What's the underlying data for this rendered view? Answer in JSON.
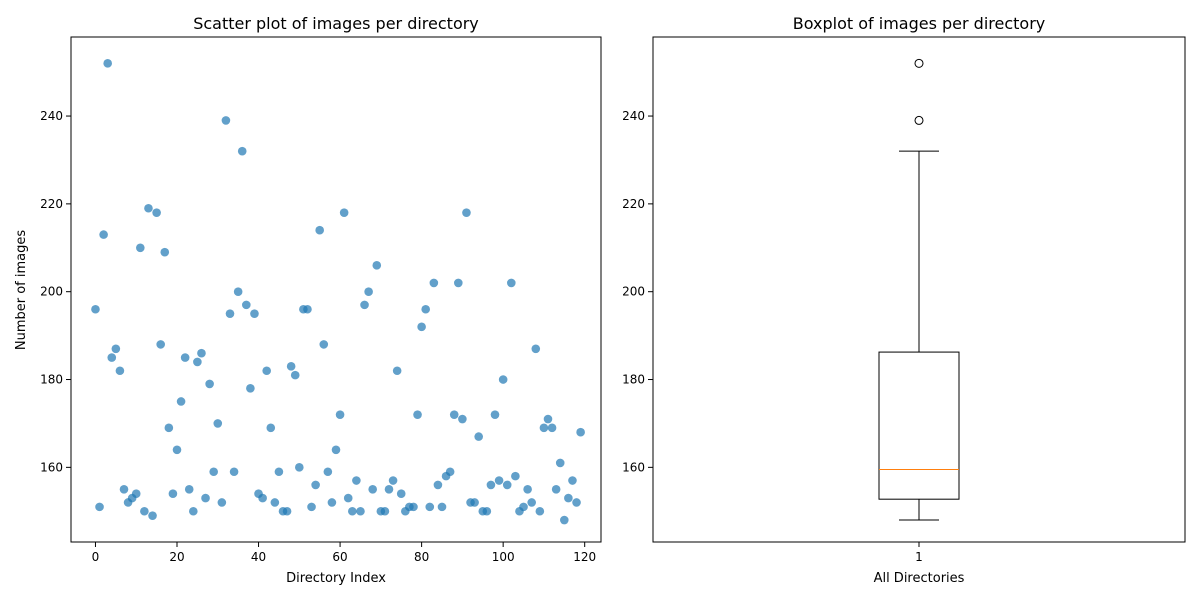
{
  "chart_data": [
    {
      "type": "scatter",
      "title": "Scatter plot of images per directory",
      "xlabel": "Directory Index",
      "ylabel": "Number of images",
      "xlim": [
        -6,
        124
      ],
      "ylim": [
        143,
        258
      ],
      "xticks": [
        0,
        20,
        40,
        60,
        80,
        100,
        120
      ],
      "yticks": [
        160,
        180,
        200,
        220,
        240
      ],
      "grid": false,
      "marker_color": "#1f77b4",
      "marker_alpha": 0.7,
      "x": [
        0,
        1,
        2,
        3,
        4,
        5,
        6,
        7,
        8,
        9,
        10,
        11,
        12,
        13,
        14,
        15,
        16,
        17,
        18,
        19,
        20,
        21,
        22,
        23,
        24,
        25,
        26,
        27,
        28,
        29,
        30,
        31,
        32,
        33,
        34,
        35,
        36,
        37,
        38,
        39,
        40,
        41,
        42,
        43,
        44,
        45,
        46,
        47,
        48,
        49,
        50,
        51,
        52,
        53,
        54,
        55,
        56,
        57,
        58,
        59,
        60,
        61,
        62,
        63,
        64,
        65,
        66,
        67,
        68,
        69,
        70,
        71,
        72,
        73,
        74,
        75,
        76,
        77,
        78,
        79,
        80,
        81,
        82,
        83,
        84,
        85,
        86,
        87,
        88,
        89,
        90,
        91,
        92,
        93,
        94,
        95,
        96,
        97,
        98,
        99,
        100,
        101,
        102,
        103,
        104,
        105,
        106,
        107,
        108,
        109,
        110,
        111,
        112,
        113,
        114,
        115,
        116,
        117,
        118,
        119
      ],
      "y": [
        196,
        151,
        213,
        252,
        185,
        187,
        182,
        155,
        152,
        153,
        154,
        210,
        150,
        219,
        149,
        218,
        188,
        209,
        169,
        154,
        164,
        175,
        185,
        155,
        150,
        184,
        186,
        153,
        179,
        159,
        170,
        152,
        239,
        195,
        159,
        200,
        232,
        197,
        178,
        195,
        154,
        153,
        182,
        169,
        152,
        159,
        150,
        150,
        183,
        181,
        160,
        196,
        196,
        151,
        156,
        214,
        188,
        159,
        152,
        164,
        172,
        218,
        153,
        150,
        157,
        150,
        197,
        200,
        155,
        206,
        150,
        150,
        155,
        157,
        182,
        154,
        150,
        151,
        151,
        172,
        192,
        196,
        151,
        202,
        156,
        151,
        158,
        159,
        172,
        202,
        171,
        218,
        152,
        152,
        167,
        150,
        150,
        156,
        172,
        157,
        180,
        156,
        202,
        158,
        150,
        151,
        155,
        152,
        187,
        150,
        169,
        171,
        169,
        155,
        161,
        148,
        153,
        157,
        152,
        168
      ]
    },
    {
      "type": "box",
      "title": "Boxplot of images per directory",
      "xlabel": "All Directories",
      "ylabel": "",
      "ylim": [
        143,
        258
      ],
      "xticks": [
        "1"
      ],
      "yticks": [
        160,
        180,
        200,
        220,
        240
      ],
      "grid": false,
      "median_color": "#ff7f0e",
      "box": {
        "whisker_low": 148,
        "q1": 152.75,
        "median": 159.5,
        "q3": 186.25,
        "whisker_high": 232,
        "outliers": [
          239,
          252
        ]
      }
    }
  ]
}
